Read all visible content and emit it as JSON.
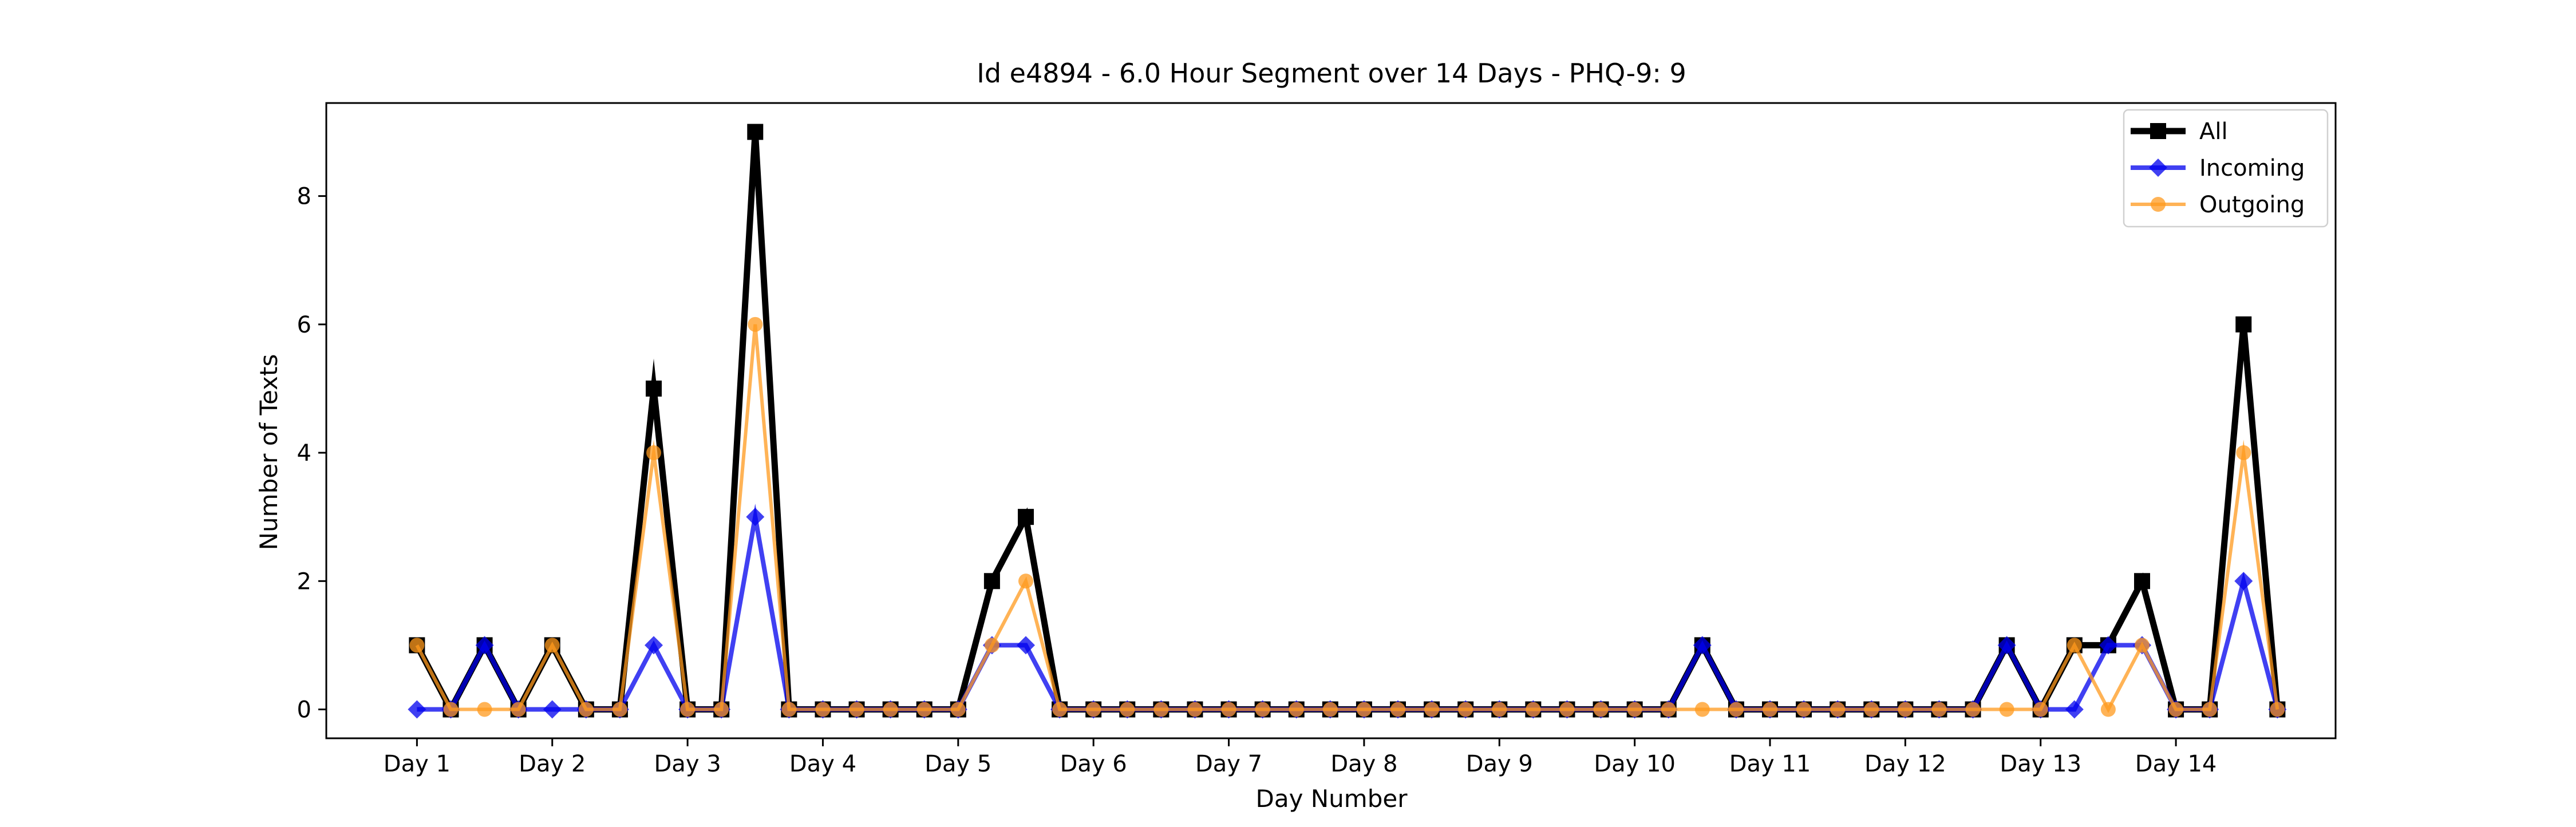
{
  "chart_data": {
    "type": "line",
    "title": "Id e4894 - 6.0 Hour Segment over 14 Days - PHQ-9: 9",
    "xlabel": "Day Number",
    "ylabel": "Number of Texts",
    "x_ticks": [
      {
        "label": "Day 1",
        "x": 1
      },
      {
        "label": "Day 2",
        "x": 2
      },
      {
        "label": "Day 3",
        "x": 3
      },
      {
        "label": "Day 4",
        "x": 4
      },
      {
        "label": "Day 5",
        "x": 5
      },
      {
        "label": "Day 6",
        "x": 6
      },
      {
        "label": "Day 7",
        "x": 7
      },
      {
        "label": "Day 8",
        "x": 8
      },
      {
        "label": "Day 9",
        "x": 9
      },
      {
        "label": "Day 10",
        "x": 10
      },
      {
        "label": "Day 11",
        "x": 11
      },
      {
        "label": "Day 12",
        "x": 12
      },
      {
        "label": "Day 13",
        "x": 13
      },
      {
        "label": "Day 14",
        "x": 14
      }
    ],
    "y_ticks": [
      0,
      2,
      4,
      6,
      8
    ],
    "xlim": [
      0.33,
      15.18
    ],
    "ylim": [
      -0.45,
      9.45
    ],
    "grid": false,
    "legend_position": "top-right",
    "x": [
      1.0,
      1.25,
      1.5,
      1.75,
      2.0,
      2.25,
      2.5,
      2.75,
      3.0,
      3.25,
      3.5,
      3.75,
      4.0,
      4.25,
      4.5,
      4.75,
      5.0,
      5.25,
      5.5,
      5.75,
      6.0,
      6.25,
      6.5,
      6.75,
      7.0,
      7.25,
      7.5,
      7.75,
      8.0,
      8.25,
      8.5,
      8.75,
      9.0,
      9.25,
      9.5,
      9.75,
      10.0,
      10.25,
      10.5,
      10.75,
      11.0,
      11.25,
      11.5,
      11.75,
      12.0,
      12.25,
      12.5,
      12.75,
      13.0,
      13.25,
      13.5,
      13.75,
      14.0,
      14.25,
      14.5,
      14.75
    ],
    "series": [
      {
        "name": "All",
        "color": "#000000",
        "marker": "square",
        "values": [
          1,
          0,
          1,
          0,
          1,
          0,
          0,
          5,
          0,
          0,
          9,
          0,
          0,
          0,
          0,
          0,
          0,
          2,
          3,
          0,
          0,
          0,
          0,
          0,
          0,
          0,
          0,
          0,
          0,
          0,
          0,
          0,
          0,
          0,
          0,
          0,
          0,
          0,
          1,
          0,
          0,
          0,
          0,
          0,
          0,
          0,
          0,
          1,
          0,
          1,
          1,
          2,
          0,
          0,
          6,
          0
        ]
      },
      {
        "name": "Incoming",
        "color": "#0000ee",
        "marker": "diamond",
        "values": [
          0,
          0,
          1,
          0,
          0,
          0,
          0,
          1,
          0,
          0,
          3,
          0,
          0,
          0,
          0,
          0,
          0,
          1,
          1,
          0,
          0,
          0,
          0,
          0,
          0,
          0,
          0,
          0,
          0,
          0,
          0,
          0,
          0,
          0,
          0,
          0,
          0,
          0,
          1,
          0,
          0,
          0,
          0,
          0,
          0,
          0,
          0,
          1,
          0,
          0,
          1,
          1,
          0,
          0,
          2,
          0
        ]
      },
      {
        "name": "Outgoing",
        "color": "#ff9a1e",
        "marker": "circle",
        "values": [
          1,
          0,
          0,
          0,
          1,
          0,
          0,
          4,
          0,
          0,
          6,
          0,
          0,
          0,
          0,
          0,
          0,
          1,
          2,
          0,
          0,
          0,
          0,
          0,
          0,
          0,
          0,
          0,
          0,
          0,
          0,
          0,
          0,
          0,
          0,
          0,
          0,
          0,
          0,
          0,
          0,
          0,
          0,
          0,
          0,
          0,
          0,
          0,
          0,
          1,
          0,
          1,
          0,
          0,
          4,
          0
        ]
      }
    ]
  }
}
